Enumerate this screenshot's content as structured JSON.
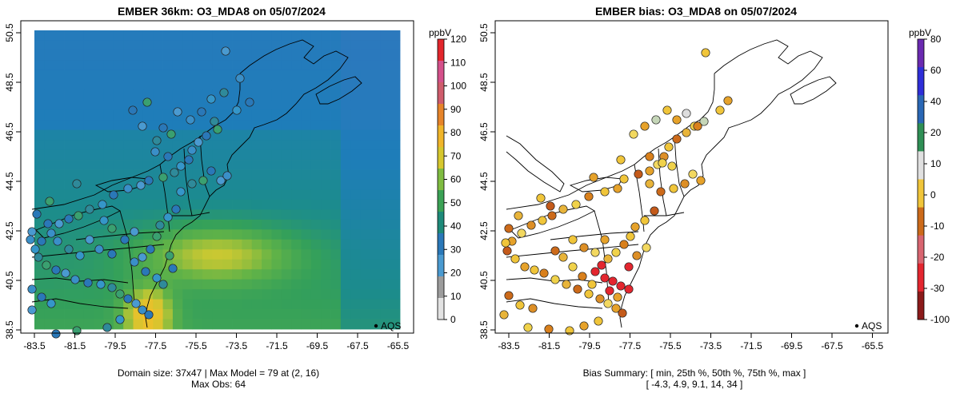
{
  "chart_data": [
    {
      "type": "heatmap",
      "title": "EMBER 36km: O3_MDA8 on 05/07/2024",
      "x_ticks": [
        "-83.5",
        "-81.5",
        "-79.5",
        "-77.5",
        "-75.5",
        "-73.5",
        "-71.5",
        "-69.5",
        "-67.5",
        "-65.5"
      ],
      "y_ticks": [
        "38.5",
        "40.5",
        "42.5",
        "44.5",
        "46.5",
        "48.5",
        "50.5"
      ],
      "xlim": [
        -84.2,
        -65.0
      ],
      "ylim": [
        38.3,
        50.5
      ],
      "colorbar": {
        "unit": "ppbV",
        "ticks": [
          "120",
          "110",
          "100",
          "90",
          "80",
          "70",
          "60",
          "50",
          "40",
          "30",
          "20",
          "10",
          "0"
        ],
        "range": [
          0,
          120
        ],
        "colors": [
          "#e2e2e2",
          "#9c9c9c",
          "#4a9ad0",
          "#2a78b8",
          "#1e8a7a",
          "#3ba255",
          "#7fbc41",
          "#d6c72e",
          "#f0b52a",
          "#e6842a",
          "#cf5c6c",
          "#d4508a",
          "#e2262c"
        ]
      },
      "legend": "AQS",
      "footer": [
        "Domain size: 37x47 | Max Model = 79 at (2, 16)",
        "Max Obs: 64"
      ]
    },
    {
      "type": "scatter",
      "title": "EMBER bias: O3_MDA8 on 05/07/2024",
      "x_ticks": [
        "-83.5",
        "-81.5",
        "-79.5",
        "-77.5",
        "-75.5",
        "-73.5",
        "-71.5",
        "-69.5",
        "-67.5",
        "-65.5"
      ],
      "y_ticks": [
        "38.5",
        "40.5",
        "42.5",
        "44.5",
        "46.5",
        "48.5",
        "50.5"
      ],
      "xlim": [
        -84.2,
        -65.0
      ],
      "ylim": [
        38.3,
        50.5
      ],
      "colorbar": {
        "unit": "ppbV",
        "ticks": [
          "80",
          "60",
          "40",
          "20",
          "10",
          "0",
          "-10",
          "-20",
          "-30",
          "-100"
        ],
        "colors": [
          "#8b1a1a",
          "#e3262f",
          "#d86570",
          "#cc6a1a",
          "#f0c53a",
          "#e0e0e0",
          "#2f8f55",
          "#2a67b5",
          "#2e2ed8",
          "#6a2ab0"
        ]
      },
      "legend": "AQS",
      "footer": [
        "Bias Summary: [ min, 25th %, 50th %, 75th %, max ]",
        "[ -4.3,   4.9,   9.1,   14,   34 ]"
      ]
    }
  ]
}
